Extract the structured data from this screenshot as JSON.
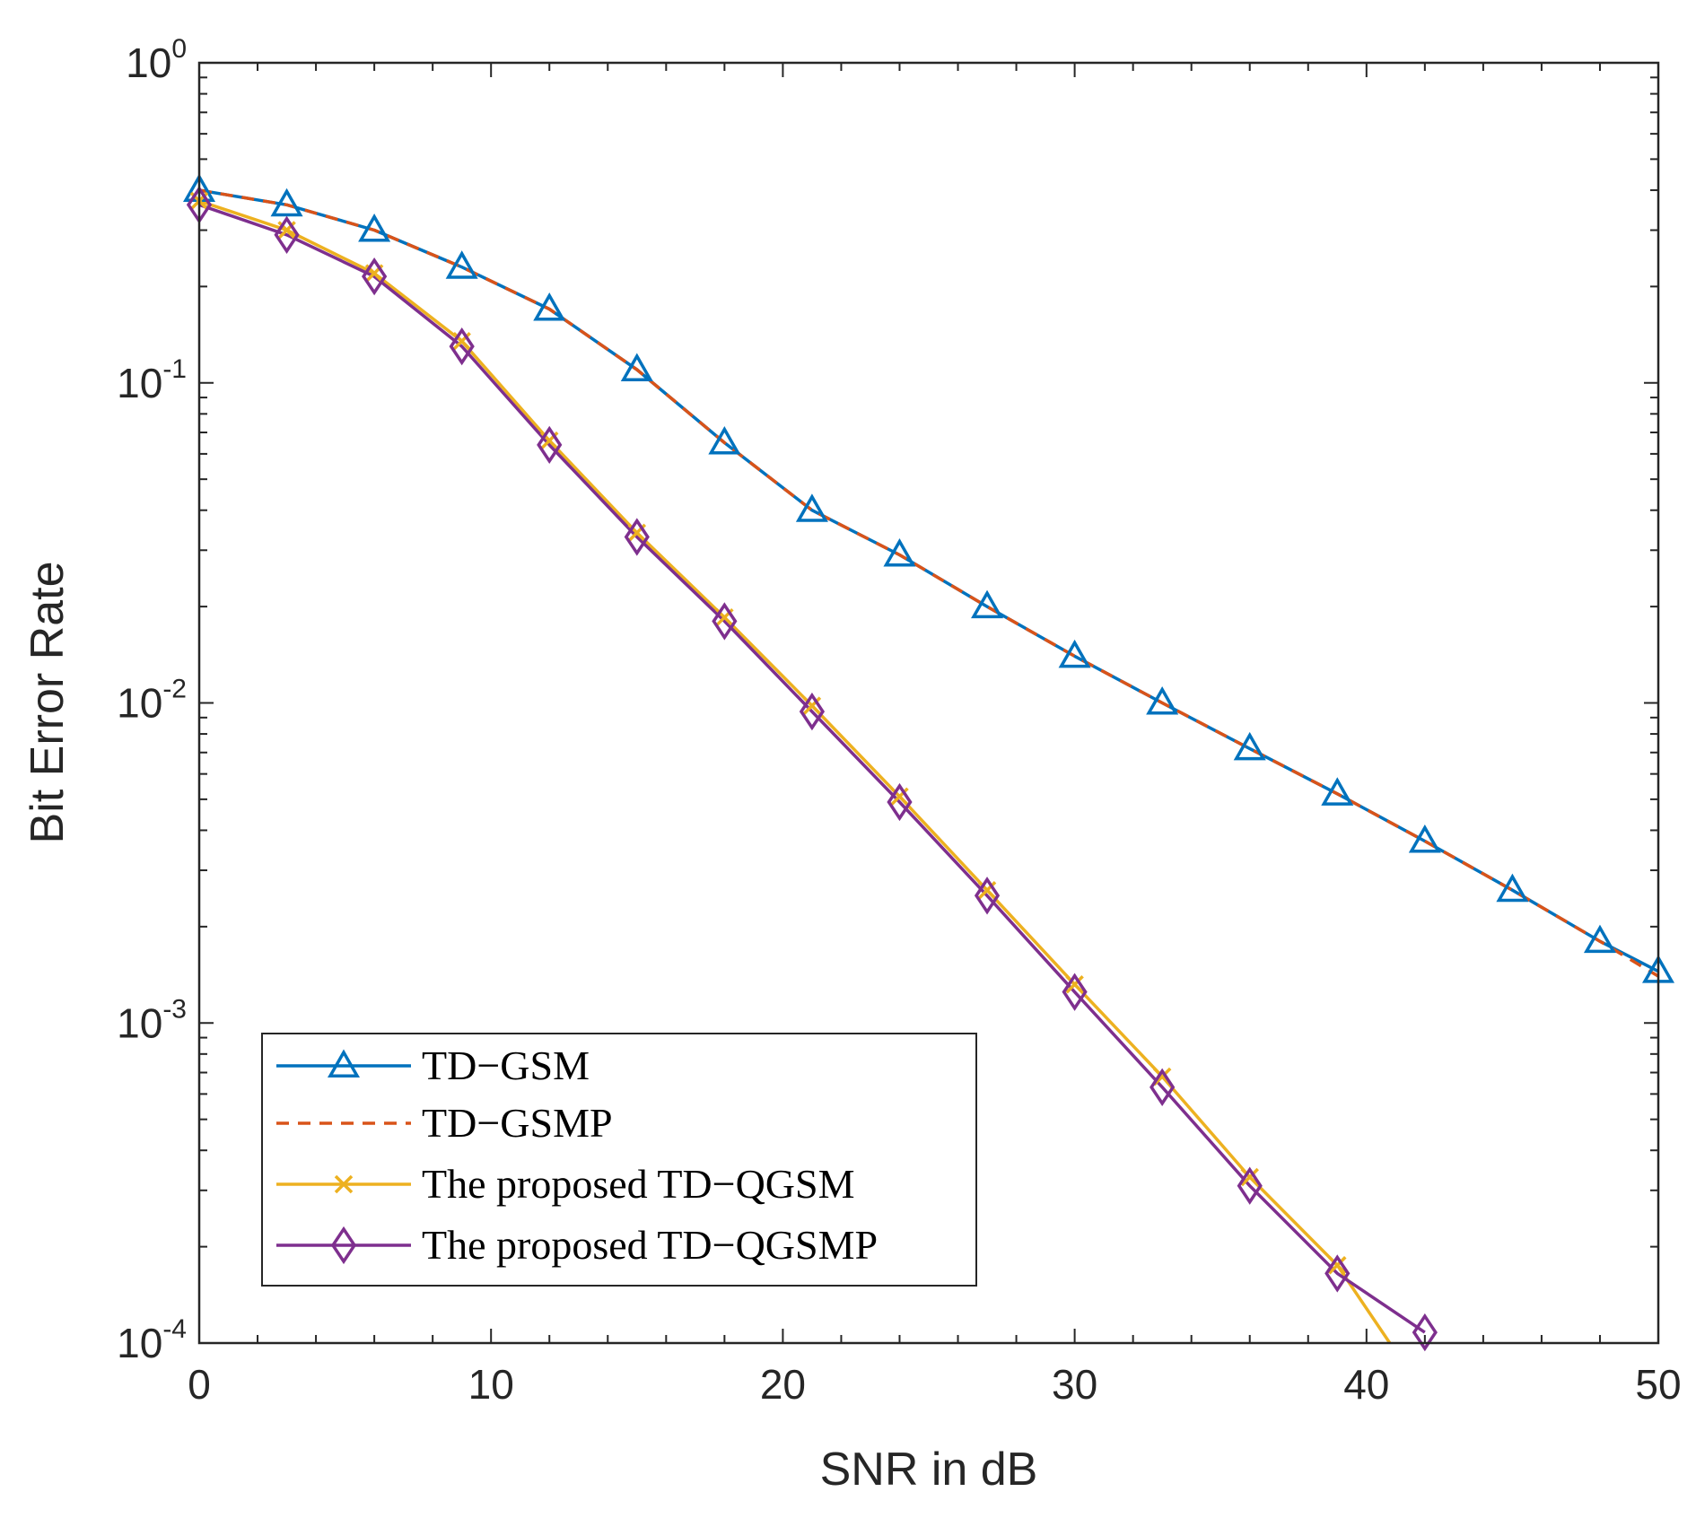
{
  "chart_data": {
    "type": "line",
    "xlabel": "SNR in dB",
    "ylabel": "Bit Error Rate",
    "x_scale": "linear",
    "y_scale": "log",
    "xlim": [
      0,
      50
    ],
    "ylim": [
      0.0001,
      1
    ],
    "x_ticks": [
      0,
      10,
      20,
      30,
      40,
      50
    ],
    "x_tick_labels": [
      "0",
      "10",
      "20",
      "30",
      "40",
      "50"
    ],
    "y_ticks": [
      {
        "value": 1,
        "base": "10",
        "exp": "0"
      },
      {
        "value": 0.1,
        "base": "10",
        "exp": "-1"
      },
      {
        "value": 0.01,
        "base": "10",
        "exp": "-2"
      },
      {
        "value": 0.001,
        "base": "10",
        "exp": "-3"
      },
      {
        "value": 0.0001,
        "base": "10",
        "exp": "-4"
      }
    ],
    "grid": false,
    "legend_position": "bottom-left",
    "series": [
      {
        "name": "TD−GSM",
        "color": "#0072BD",
        "line_style": "solid",
        "marker": "triangle",
        "x": [
          0,
          3,
          6,
          9,
          12,
          15,
          18,
          21,
          24,
          27,
          30,
          33,
          36,
          39,
          42,
          45,
          48,
          50
        ],
        "y": [
          0.4,
          0.36,
          0.3,
          0.23,
          0.17,
          0.11,
          0.065,
          0.04,
          0.029,
          0.02,
          0.014,
          0.01,
          0.0072,
          0.0052,
          0.0037,
          0.0026,
          0.0018,
          0.00145
        ]
      },
      {
        "name": "TD−GSMP",
        "color": "#D95319",
        "line_style": "dashed",
        "marker": "none",
        "x": [
          0,
          3,
          6,
          9,
          12,
          15,
          18,
          21,
          24,
          27,
          30,
          33,
          36,
          39,
          42,
          45,
          48,
          50
        ],
        "y": [
          0.4,
          0.36,
          0.3,
          0.23,
          0.17,
          0.11,
          0.065,
          0.04,
          0.029,
          0.02,
          0.014,
          0.01,
          0.0072,
          0.0052,
          0.0037,
          0.0026,
          0.0018,
          0.0014
        ]
      },
      {
        "name": "The proposed TD−QGSM",
        "color": "#EDB120",
        "line_style": "solid",
        "marker": "x",
        "x": [
          0,
          3,
          6,
          9,
          12,
          15,
          18,
          21,
          24,
          27,
          30,
          33,
          36,
          39,
          40.8
        ],
        "y": [
          0.37,
          0.3,
          0.22,
          0.135,
          0.066,
          0.034,
          0.0185,
          0.0098,
          0.0051,
          0.0026,
          0.00132,
          0.00068,
          0.00033,
          0.000175,
          0.0001
        ]
      },
      {
        "name": "The proposed TD−QGSMP",
        "color": "#7E2F8E",
        "line_style": "solid",
        "marker": "diamond",
        "x": [
          0,
          3,
          6,
          9,
          12,
          15,
          18,
          21,
          24,
          27,
          30,
          33,
          36,
          39,
          42
        ],
        "y": [
          0.36,
          0.29,
          0.215,
          0.13,
          0.064,
          0.033,
          0.018,
          0.0094,
          0.0049,
          0.0025,
          0.00125,
          0.00063,
          0.00031,
          0.000165,
          0.000108
        ]
      }
    ]
  }
}
